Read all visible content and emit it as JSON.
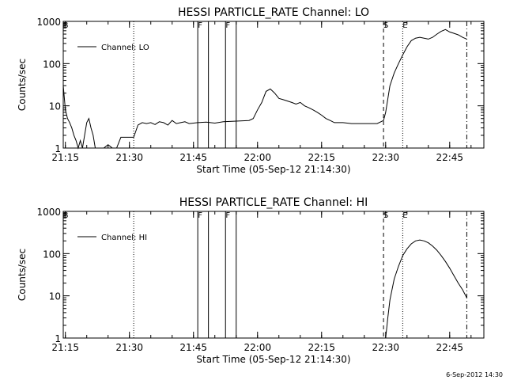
{
  "footer_date": "6-Sep-2012 14:30",
  "chart_data": [
    {
      "type": "line",
      "title": "HESSI PARTICLE_RATE Channel: LO",
      "xlabel": "Start Time (05-Sep-12 21:14:30)",
      "ylabel": "Counts/sec",
      "yscale": "log",
      "ylim": [
        1,
        1000
      ],
      "x_ticks": [
        "21:15",
        "21:30",
        "21:45",
        "22:00",
        "22:15",
        "22:30",
        "22:45"
      ],
      "y_ticks": [
        "1",
        "10",
        "100",
        "1000"
      ],
      "legend": "Channel: LO",
      "legend_position": "top-left",
      "markers": [
        {
          "label": "B",
          "x": "21:14:30",
          "style": "none"
        },
        {
          "label": "",
          "x": "21:31",
          "style": "dotted"
        },
        {
          "label": "F",
          "x": "21:46",
          "style": "solid"
        },
        {
          "label": "",
          "x": "21:48:30",
          "style": "solid"
        },
        {
          "label": "F",
          "x": "21:52:30",
          "style": "solid"
        },
        {
          "label": "",
          "x": "21:55",
          "style": "solid"
        },
        {
          "label": "S",
          "x": "22:29:30",
          "style": "dashed"
        },
        {
          "label": "E",
          "x": "22:34",
          "style": "dotted"
        },
        {
          "label": "",
          "x": "22:49",
          "style": "dashdot"
        }
      ],
      "series": [
        {
          "name": "Channel: LO",
          "x": [
            "21:14:30",
            "21:15",
            "21:15:30",
            "21:16",
            "21:16:30",
            "21:17",
            "21:17:30",
            "21:18",
            "21:18:30",
            "21:19",
            "21:19:30",
            "21:20",
            "21:20:30",
            "21:21",
            "21:21:30",
            "21:22",
            "21:23",
            "21:24",
            "21:25",
            "21:26",
            "21:27",
            "21:28",
            "21:29",
            "21:30",
            "21:31",
            "21:32",
            "21:33",
            "21:34",
            "21:35",
            "21:36",
            "21:37",
            "21:38",
            "21:39",
            "21:40",
            "21:41",
            "21:42",
            "21:43",
            "21:44",
            "21:46",
            "21:48",
            "21:50",
            "21:52",
            "21:54",
            "21:56",
            "21:58",
            "21:59",
            "22:00",
            "22:01",
            "22:02",
            "22:03",
            "22:04",
            "22:05",
            "22:06",
            "22:07",
            "22:08",
            "22:09",
            "22:10",
            "22:11",
            "22:12",
            "22:13",
            "22:14",
            "22:15",
            "22:16",
            "22:17",
            "22:18",
            "22:19",
            "22:20",
            "22:22",
            "22:24",
            "22:26",
            "22:28",
            "22:29:30",
            "22:30",
            "22:31",
            "22:32",
            "22:33",
            "22:34",
            "22:35",
            "22:36",
            "22:37",
            "22:38",
            "22:39",
            "22:40",
            "22:41",
            "22:42",
            "22:43",
            "22:44",
            "22:45",
            "22:46",
            "22:47",
            "22:48",
            "22:49"
          ],
          "y": [
            30,
            8,
            5,
            4,
            3,
            2,
            1.5,
            1,
            1.5,
            1,
            2,
            4,
            5,
            3,
            2,
            1,
            1,
            1,
            1.2,
            1,
            1,
            1.8,
            1.8,
            1.8,
            1.8,
            3.5,
            4,
            3.8,
            4,
            3.6,
            4.2,
            4,
            3.5,
            4.5,
            3.8,
            4,
            4.2,
            3.8,
            4,
            4.1,
            3.9,
            4.2,
            4.3,
            4.4,
            4.5,
            5,
            8,
            12,
            22,
            25,
            20,
            15,
            14,
            13,
            12,
            11,
            12,
            10,
            9,
            8,
            7,
            6,
            5,
            4.5,
            4,
            4,
            4,
            3.8,
            3.8,
            3.8,
            3.8,
            4.5,
            7,
            30,
            60,
            100,
            160,
            250,
            350,
            400,
            420,
            400,
            380,
            420,
            500,
            580,
            640,
            560,
            520,
            480,
            420,
            380
          ]
        }
      ]
    },
    {
      "type": "line",
      "title": "HESSI PARTICLE_RATE Channel: HI",
      "xlabel": "Start Time (05-Sep-12 21:14:30)",
      "ylabel": "Counts/sec",
      "yscale": "log",
      "ylim": [
        1,
        1000
      ],
      "x_ticks": [
        "21:15",
        "21:30",
        "21:45",
        "22:00",
        "22:15",
        "22:30",
        "22:45"
      ],
      "y_ticks": [
        "1",
        "10",
        "100",
        "1000"
      ],
      "legend": "Channel: HI",
      "legend_position": "top-left",
      "markers": [
        {
          "label": "B",
          "x": "21:14:30",
          "style": "none"
        },
        {
          "label": "",
          "x": "21:31",
          "style": "dotted"
        },
        {
          "label": "F",
          "x": "21:46",
          "style": "solid"
        },
        {
          "label": "",
          "x": "21:48:30",
          "style": "solid"
        },
        {
          "label": "F",
          "x": "21:52:30",
          "style": "solid"
        },
        {
          "label": "",
          "x": "21:55",
          "style": "solid"
        },
        {
          "label": "S",
          "x": "22:29:30",
          "style": "dashed"
        },
        {
          "label": "E",
          "x": "22:34",
          "style": "dotted"
        },
        {
          "label": "",
          "x": "22:49",
          "style": "dashdot"
        }
      ],
      "series": [
        {
          "name": "Channel: HI",
          "x": [
            "22:30",
            "22:30:30",
            "22:31",
            "22:32",
            "22:33",
            "22:34",
            "22:35",
            "22:36",
            "22:37",
            "22:38",
            "22:39",
            "22:40",
            "22:41",
            "22:42",
            "22:43",
            "22:44",
            "22:45",
            "22:46",
            "22:47",
            "22:48",
            "22:49"
          ],
          "y": [
            1,
            3,
            8,
            25,
            50,
            90,
            130,
            170,
            200,
            210,
            200,
            180,
            150,
            120,
            90,
            65,
            45,
            30,
            20,
            14,
            9
          ]
        }
      ]
    }
  ]
}
